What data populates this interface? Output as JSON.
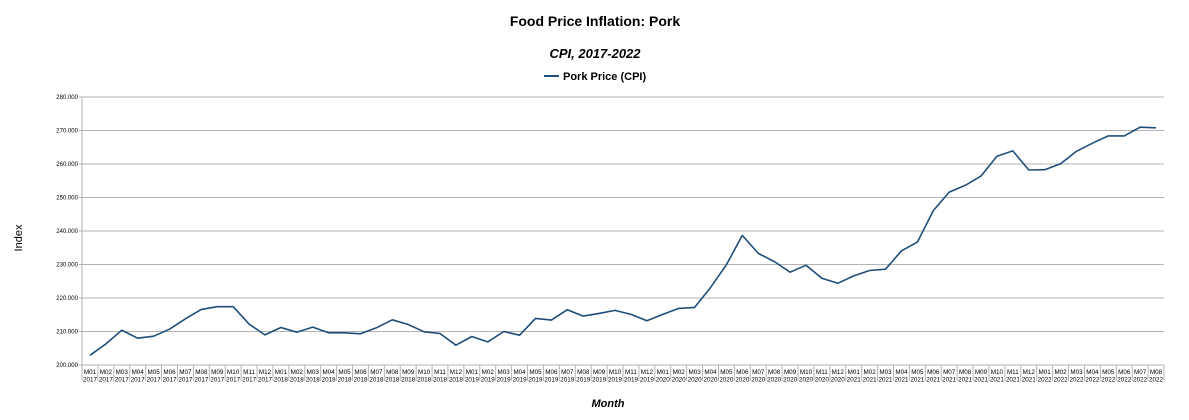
{
  "chart_data": {
    "type": "line",
    "title": "Food Price Inflation: Pork",
    "subtitle": "CPI, 2017-2022",
    "xlabel": "Month",
    "ylabel": "Index",
    "ylim": [
      200,
      280
    ],
    "yticks": [
      "200.000",
      "210.000",
      "220.000",
      "230.000",
      "240.000",
      "250.000",
      "260.000",
      "270.000",
      "280.000"
    ],
    "grid": true,
    "legend_position": "top-center",
    "series_color": "#1f4e79",
    "series": [
      {
        "name": "Pork Price (CPI)",
        "values": [
          202.9,
          206.3,
          210.4,
          208.0,
          208.6,
          210.7,
          213.8,
          216.6,
          217.4,
          217.4,
          212.2,
          209.0,
          211.2,
          209.8,
          211.3,
          209.6,
          209.6,
          209.3,
          211.1,
          213.5,
          212.1,
          209.9,
          209.4,
          205.9,
          208.5,
          206.9,
          210.0,
          208.9,
          213.9,
          213.4,
          216.5,
          214.6,
          215.4,
          216.3,
          215.1,
          213.2,
          215.1,
          216.9,
          217.2,
          223.1,
          229.9,
          238.7,
          233.3,
          230.9,
          227.7,
          229.8,
          225.9,
          224.4,
          226.6,
          228.2,
          228.6,
          234.1,
          236.7,
          246.1,
          251.6,
          253.6,
          256.4,
          262.3,
          263.9,
          258.2,
          258.3,
          260.1,
          263.8,
          266.2,
          268.4,
          268.4,
          271.0,
          270.8
        ]
      }
    ],
    "x_labels": [
      [
        "M01",
        "2017"
      ],
      [
        "M02",
        "2017"
      ],
      [
        "M03",
        "2017"
      ],
      [
        "M04",
        "2017"
      ],
      [
        "M05",
        "2017"
      ],
      [
        "M06",
        "2017"
      ],
      [
        "M07",
        "2017"
      ],
      [
        "M08",
        "2017"
      ],
      [
        "M09",
        "2017"
      ],
      [
        "M10",
        "2017"
      ],
      [
        "M11",
        "2017"
      ],
      [
        "M12",
        "2017"
      ],
      [
        "M01",
        "2018"
      ],
      [
        "M02",
        "2018"
      ],
      [
        "M03",
        "2018"
      ],
      [
        "M04",
        "2018"
      ],
      [
        "M05",
        "2018"
      ],
      [
        "M06",
        "2018"
      ],
      [
        "M07",
        "2018"
      ],
      [
        "M08",
        "2018"
      ],
      [
        "M09",
        "2018"
      ],
      [
        "M10",
        "2018"
      ],
      [
        "M11",
        "2018"
      ],
      [
        "M12",
        "2018"
      ],
      [
        "M01",
        "2019"
      ],
      [
        "M02",
        "2019"
      ],
      [
        "M03",
        "2019"
      ],
      [
        "M04",
        "2019"
      ],
      [
        "M05",
        "2019"
      ],
      [
        "M06",
        "2019"
      ],
      [
        "M07",
        "2019"
      ],
      [
        "M08",
        "2019"
      ],
      [
        "M09",
        "2019"
      ],
      [
        "M10",
        "2019"
      ],
      [
        "M11",
        "2019"
      ],
      [
        "M12",
        "2019"
      ],
      [
        "M01",
        "2020"
      ],
      [
        "M02",
        "2020"
      ],
      [
        "M03",
        "2020"
      ],
      [
        "M04",
        "2020"
      ],
      [
        "M05",
        "2020"
      ],
      [
        "M06",
        "2020"
      ],
      [
        "M07",
        "2020"
      ],
      [
        "M08",
        "2020"
      ],
      [
        "M09",
        "2020"
      ],
      [
        "M10",
        "2020"
      ],
      [
        "M11",
        "2020"
      ],
      [
        "M12",
        "2020"
      ],
      [
        "M01",
        "2021"
      ],
      [
        "M02",
        "2021"
      ],
      [
        "M03",
        "2021"
      ],
      [
        "M04",
        "2021"
      ],
      [
        "M05",
        "2021"
      ],
      [
        "M06",
        "2021"
      ],
      [
        "M07",
        "2021"
      ],
      [
        "M08",
        "2021"
      ],
      [
        "M09",
        "2021"
      ],
      [
        "M10",
        "2021"
      ],
      [
        "M11",
        "2021"
      ],
      [
        "M12",
        "2021"
      ],
      [
        "M01",
        "2022"
      ],
      [
        "M02",
        "2022"
      ],
      [
        "M03",
        "2022"
      ],
      [
        "M04",
        "2022"
      ],
      [
        "M05",
        "2022"
      ],
      [
        "M06",
        "2022"
      ],
      [
        "M07",
        "2022"
      ],
      [
        "M08",
        "2022"
      ]
    ]
  }
}
